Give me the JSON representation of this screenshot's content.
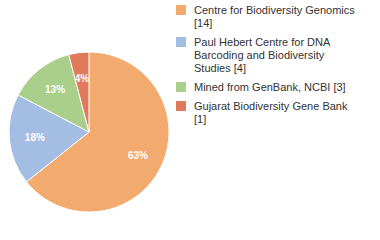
{
  "chart_data": {
    "type": "pie",
    "categories": [
      "Centre for Biodiversity Genomics [14]",
      "Paul Hebert Centre for DNA Barcoding and Biodiversity Studies [4]",
      "Mined from GenBank, NCBI [3]",
      "Gujarat Biodiversity Gene Bank [1]"
    ],
    "values": [
      63,
      18,
      13,
      4
    ],
    "value_labels": [
      "63%",
      "18%",
      "13%",
      "4%"
    ],
    "colors": [
      "#f2aa6e",
      "#a3bde3",
      "#a9cf8a",
      "#e07a5a"
    ],
    "data_labels": true,
    "legend": "right"
  }
}
